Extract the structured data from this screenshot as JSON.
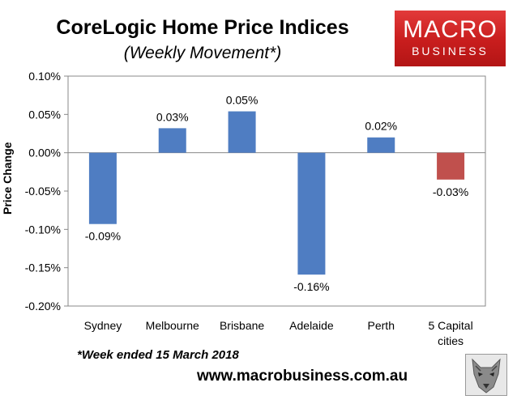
{
  "header": {
    "title": "CoreLogic Home Price Indices",
    "subtitle": "(Weekly Movement*)"
  },
  "logo": {
    "line1": "MACRO",
    "line2": "BUSINESS"
  },
  "footer": {
    "note": "*Week ended 15 March 2018",
    "website": "www.macrobusiness.com.au"
  },
  "colors": {
    "bar": "#4f7dc2",
    "highlight_bar": "#c0504d",
    "logo": "#c81d1d"
  },
  "chart_data": {
    "type": "bar",
    "title": "CoreLogic Home Price Indices",
    "ylabel": "Price Change",
    "xlabel": "",
    "ylim": [
      -0.2,
      0.1
    ],
    "yticks": [
      0.1,
      0.05,
      0.0,
      -0.05,
      -0.1,
      -0.15,
      -0.2
    ],
    "ytick_labels": [
      "0.10%",
      "0.05%",
      "0.00%",
      "-0.05%",
      "-0.10%",
      "-0.15%",
      "-0.20%"
    ],
    "grid": false,
    "categories": [
      {
        "label": "Sydney",
        "label2": ""
      },
      {
        "label": "Melbourne",
        "label2": ""
      },
      {
        "label": "Brisbane",
        "label2": ""
      },
      {
        "label": "Adelaide",
        "label2": ""
      },
      {
        "label": "Perth",
        "label2": ""
      },
      {
        "label": "5 Capital",
        "label2": "cities"
      }
    ],
    "values": [
      -0.093,
      0.032,
      0.054,
      -0.159,
      0.02,
      -0.035
    ],
    "data_labels": [
      "-0.09%",
      "0.03%",
      "0.05%",
      "-0.16%",
      "0.02%",
      "-0.03%"
    ]
  }
}
